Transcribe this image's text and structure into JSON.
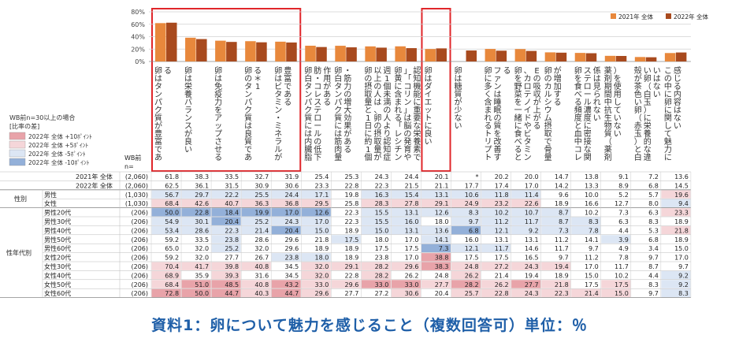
{
  "note": "WB前n=30以上の場合",
  "legend_diff": {
    "title": "[比率の差]",
    "items": [
      {
        "label": "2022年 全体 +10ﾎﾟｲﾝﾄ",
        "color": "#e8a3a9"
      },
      {
        "label": "2022年 全体 +5ﾎﾟｲﾝﾄ",
        "color": "#f5d6d9"
      },
      {
        "label": "2022年 全体 -5ﾎﾟｲﾝﾄ",
        "color": "#dce6f4"
      },
      {
        "label": "2022年 全体 -10ﾎﾟｲﾝﾄ",
        "color": "#93b0d9"
      }
    ]
  },
  "col_header": {
    "wb": "WB前",
    "n": "n="
  },
  "group_labels": {
    "gender": "性別",
    "age": "性年代別"
  },
  "caption": "資料1：卵について魅力を感じること（複数回答可）単位：％",
  "chart_data": {
    "type": "bar",
    "ylim": [
      0,
      80
    ],
    "yticks": [
      "0%",
      "20%",
      "40%",
      "60%",
      "80%"
    ],
    "legend_position": "top-right",
    "categories": [
      "卵はタンパク質が豊富である",
      "卵は栄養バランスが良い",
      "卵は免疫力をアップさせる",
      "卵のタンパク質は良質である＊1",
      "卵はビタミン・ミネラルが豊富である",
      "卵白タンパク質には内臓脂肪・コレステロールの低下作用がある",
      "卵白タンパク質には筋肉量・筋力の増大効果がある",
      "卵の摂取量と1日に約1個以上の人は、卵の摂取量が週1個未満の人より認知症の発症リスクが低い傾向にある",
      "卵黄に含まれる「レシチン」「コリン」は脳の発育や認知機能に重要な栄養素である",
      "卵はダイエットに良い",
      "卵は糖質が少ない",
      "卵に多く含まれるトリプトファンは睡眠の質を改善する",
      "卵を野菜を一緒に食べると、カロテノイドやビタミンEの吸収が上がる",
      "卵のカルシウム摂取で骨量が増加する",
      "卵を食べる頻度と血中コレステロール濃度に密接な関係は見られない",
      "薬剤期間中抗生物質（薬剤）を使用していない",
      "殻が茶色い卵（赤玉）と白い卵（白玉）に栄養的な違いはない",
      "この中に卵に関して魅力に感じる内容はない"
    ],
    "highlight_groups": [
      [
        0,
        4
      ],
      [
        9,
        9
      ]
    ],
    "series": [
      {
        "name": "2021年 全体",
        "color": "#e8883c",
        "values": [
          61.8,
          38.3,
          33.5,
          32.7,
          31.9,
          25.4,
          25.3,
          24.3,
          24.4,
          20.1,
          null,
          20.2,
          20.0,
          14.7,
          13.8,
          9.1,
          7.2,
          13.6
        ]
      },
      {
        "name": "2022年 全体",
        "color": "#a84a1e",
        "values": [
          62.5,
          36.1,
          31.5,
          30.9,
          30.6,
          23.3,
          22.8,
          22.3,
          21.5,
          21.1,
          17.7,
          17.4,
          17.0,
          14.2,
          13.3,
          8.9,
          6.8,
          14.5
        ]
      }
    ]
  },
  "table": {
    "rows": [
      {
        "group": "",
        "label": "2021年 全体",
        "n": "(2,060)",
        "cells": [
          "61.8",
          "38.3",
          "33.5",
          "32.7",
          "31.9",
          "25.4",
          "25.3",
          "24.3",
          "24.4",
          "20.1",
          "*",
          "20.2",
          "20.0",
          "14.7",
          "13.8",
          "9.1",
          "7.2",
          "13.6"
        ]
      },
      {
        "group": "",
        "label": "2022年 全体",
        "n": "(2,060)",
        "cells": [
          "62.5",
          "36.1",
          "31.5",
          "30.9",
          "30.6",
          "23.3",
          "22.8",
          "22.3",
          "21.5",
          "21.1",
          "17.7",
          "17.4",
          "17.0",
          "14.2",
          "13.3",
          "8.9",
          "6.8",
          "14.5"
        ]
      },
      {
        "group": "gender",
        "label": "男性",
        "n": "(1,030)",
        "cells": [
          "56.7",
          "29.7",
          "22.2",
          "25.5",
          "24.4",
          "17.1",
          "19.8",
          "16.3",
          "15.4",
          "13.1",
          "10.6",
          "11.8",
          "11.4",
          "9.6",
          "10.0",
          "5.2",
          "5.7",
          "19.6"
        ]
      },
      {
        "group": "gender",
        "label": "女性",
        "n": "(1,030)",
        "cells": [
          "68.4",
          "42.6",
          "40.7",
          "36.3",
          "36.8",
          "29.5",
          "25.8",
          "28.3",
          "27.8",
          "29.1",
          "24.9",
          "23.2",
          "22.6",
          "18.9",
          "16.6",
          "12.7",
          "8.0",
          "9.4"
        ]
      },
      {
        "group": "age",
        "label": "男性20代",
        "n": "(206)",
        "cells": [
          "50.0",
          "22.8",
          "18.4",
          "19.9",
          "17.0",
          "12.6",
          "22.3",
          "15.5",
          "13.1",
          "12.6",
          "8.3",
          "10.2",
          "10.7",
          "8.7",
          "10.2",
          "7.3",
          "6.3",
          "23.3"
        ]
      },
      {
        "group": "age",
        "label": "男性30代",
        "n": "(206)",
        "cells": [
          "54.9",
          "30.1",
          "20.4",
          "25.2",
          "24.3",
          "17.0",
          "22.3",
          "15.5",
          "16.0",
          "18.0",
          "9.7",
          "11.2",
          "11.7",
          "8.7",
          "8.3",
          "6.3",
          "8.3",
          "18.9"
        ]
      },
      {
        "group": "age",
        "label": "男性40代",
        "n": "(206)",
        "cells": [
          "53.4",
          "28.6",
          "22.3",
          "21.4",
          "20.4",
          "15.0",
          "18.9",
          "15.0",
          "13.1",
          "13.6",
          "6.8",
          "12.1",
          "9.2",
          "7.3",
          "7.8",
          "4.4",
          "5.3",
          "21.8"
        ]
      },
      {
        "group": "age",
        "label": "男性50代",
        "n": "(206)",
        "cells": [
          "59.2",
          "33.5",
          "23.8",
          "28.6",
          "29.6",
          "21.8",
          "17.5",
          "18.0",
          "17.0",
          "14.1",
          "16.0",
          "13.1",
          "13.1",
          "11.2",
          "14.1",
          "3.9",
          "6.8",
          "18.9"
        ]
      },
      {
        "group": "age",
        "label": "男性60代",
        "n": "(206)",
        "cells": [
          "65.0",
          "32.0",
          "25.2",
          "32.0",
          "29.6",
          "18.9",
          "18.9",
          "17.5",
          "17.5",
          "7.3",
          "12.1",
          "11.7",
          "14.6",
          "11.7",
          "9.7",
          "4.9",
          "3.4",
          "15.0"
        ]
      },
      {
        "group": "age",
        "label": "女性20代",
        "n": "(206)",
        "cells": [
          "59.2",
          "32.0",
          "27.7",
          "26.7",
          "23.8",
          "18.0",
          "18.9",
          "23.8",
          "17.0",
          "38.8",
          "17.5",
          "17.5",
          "16.5",
          "9.7",
          "11.2",
          "7.8",
          "9.7",
          "17.0"
        ]
      },
      {
        "group": "age",
        "label": "女性30代",
        "n": "(206)",
        "cells": [
          "70.4",
          "41.7",
          "39.8",
          "40.8",
          "34.5",
          "32.0",
          "29.1",
          "28.2",
          "29.6",
          "38.3",
          "24.8",
          "27.2",
          "24.3",
          "19.4",
          "17.0",
          "11.7",
          "8.7",
          "9.7"
        ]
      },
      {
        "group": "age",
        "label": "女性40代",
        "n": "(206)",
        "cells": [
          "68.9",
          "35.9",
          "39.3",
          "31.6",
          "34.5",
          "32.0",
          "22.8",
          "28.2",
          "26.2",
          "24.8",
          "26.2",
          "21.4",
          "19.4",
          "18.9",
          "15.0",
          "10.2",
          "4.4",
          "9.2"
        ]
      },
      {
        "group": "age",
        "label": "女性50代",
        "n": "(206)",
        "cells": [
          "68.4",
          "51.0",
          "48.5",
          "40.8",
          "43.2",
          "33.0",
          "29.6",
          "33.0",
          "33.0",
          "27.7",
          "28.2",
          "26.2",
          "27.7",
          "21.8",
          "17.5",
          "17.5",
          "8.3",
          "9.2"
        ]
      },
      {
        "group": "age",
        "label": "女性60代",
        "n": "(206)",
        "cells": [
          "72.8",
          "50.0",
          "44.7",
          "40.3",
          "44.7",
          "29.6",
          "27.7",
          "27.2",
          "30.6",
          "20.4",
          "25.7",
          "22.8",
          "24.3",
          "22.3",
          "21.4",
          "15.0",
          "9.7",
          "8.3"
        ]
      }
    ]
  }
}
